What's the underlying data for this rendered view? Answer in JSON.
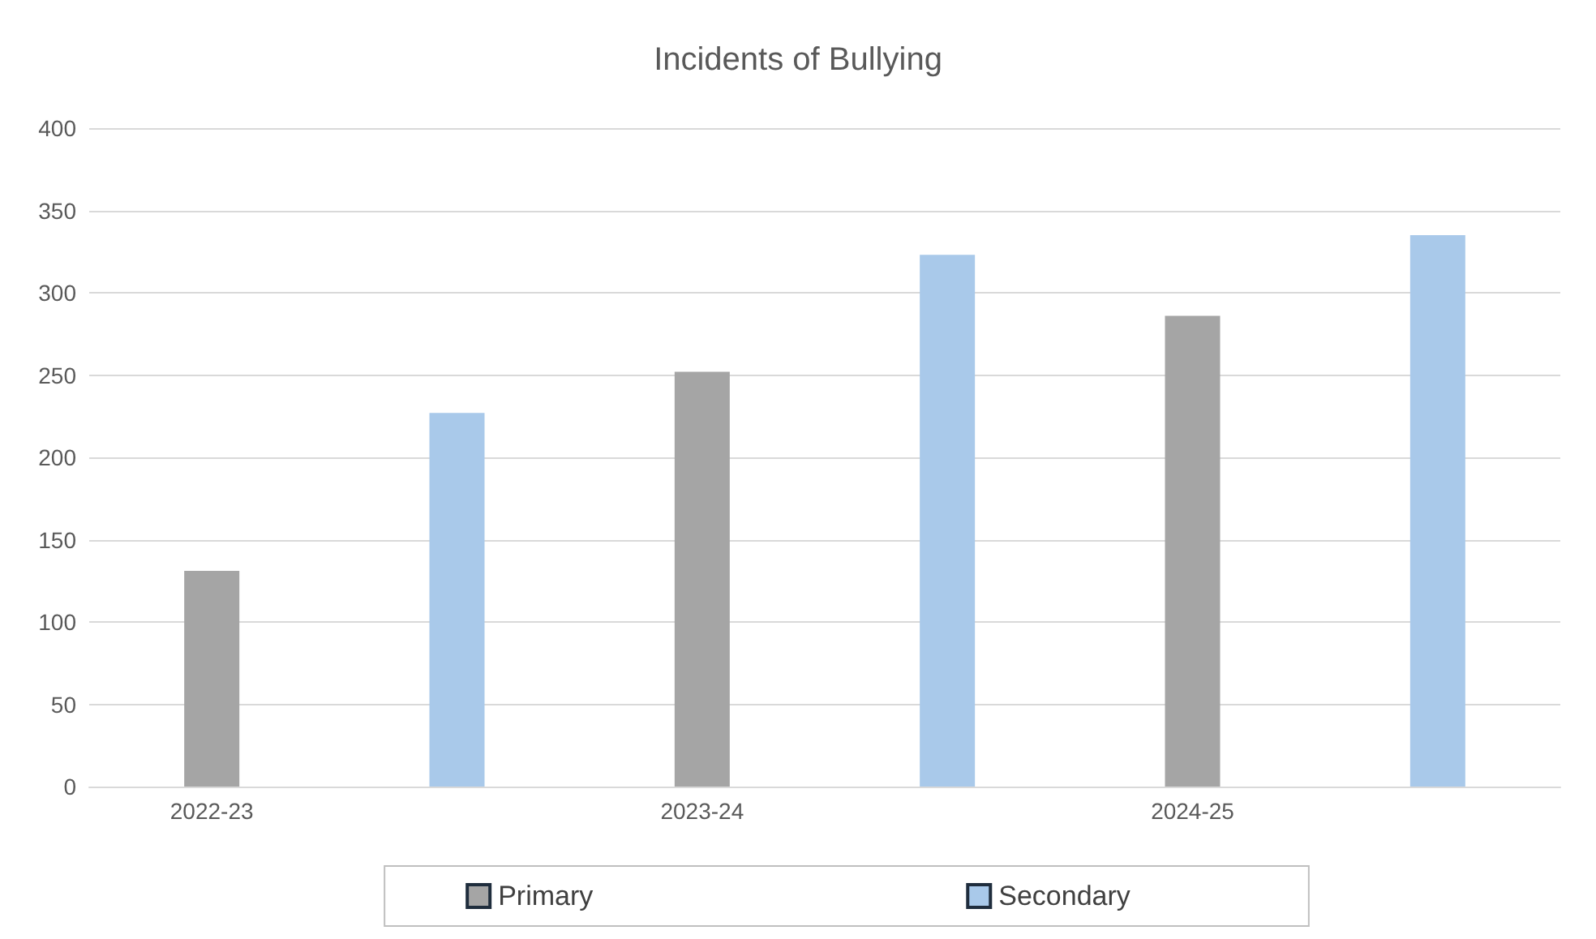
{
  "chart_data": {
    "type": "bar",
    "title": "Incidents of Bullying",
    "categories": [
      "2022-23",
      null,
      "2023-24",
      null,
      "2024-25",
      null
    ],
    "series": [
      {
        "name": "Primary",
        "color": "#a5a5a5",
        "values": [
          131,
          null,
          252,
          null,
          286,
          null
        ]
      },
      {
        "name": "Secondary",
        "color": "#a9c9ea",
        "values": [
          null,
          227,
          null,
          323,
          null,
          335
        ]
      }
    ],
    "ylim": [
      0,
      400
    ],
    "yticks": [
      0,
      50,
      100,
      150,
      200,
      250,
      300,
      350,
      400
    ],
    "grid": "y",
    "legend": "bottom"
  }
}
